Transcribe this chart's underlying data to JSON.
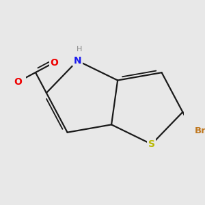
{
  "background_color": "#e8e8e8",
  "bond_color": "#1a1a1a",
  "bond_width": 1.6,
  "atom_colors": {
    "N": "#1a1aee",
    "S": "#b8b800",
    "O": "#ee0000",
    "Br": "#c07820",
    "H": "#888888"
  },
  "figsize": [
    3.0,
    3.0
  ],
  "dpi": 100,
  "xlim": [
    0,
    3
  ],
  "ylim": [
    0,
    3
  ]
}
